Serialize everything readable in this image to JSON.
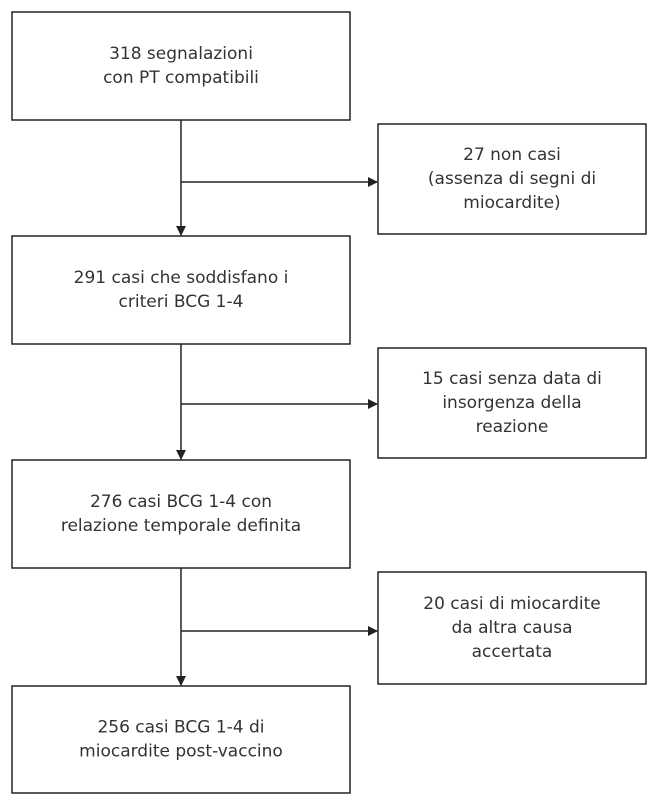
{
  "nodes": [
    {
      "lines": [
        "318 segnalazioni",
        "con PT compatibili"
      ]
    },
    {
      "lines": [
        "27 non casi",
        "(assenza di segni di",
        "miocardite)"
      ]
    },
    {
      "lines": [
        "291 casi che soddisfano i",
        "criteri BCG 1-4"
      ]
    },
    {
      "lines": [
        "15 casi senza data di",
        "insorgenza della",
        "reazione"
      ]
    },
    {
      "lines": [
        "276 casi BCG 1-4 con",
        "relazione temporale definita"
      ]
    },
    {
      "lines": [
        "20 casi di miocardite",
        "da altra causa",
        "accertata"
      ]
    },
    {
      "lines": [
        "256 casi BCG 1-4 di",
        "miocardite post-vaccino"
      ]
    }
  ]
}
